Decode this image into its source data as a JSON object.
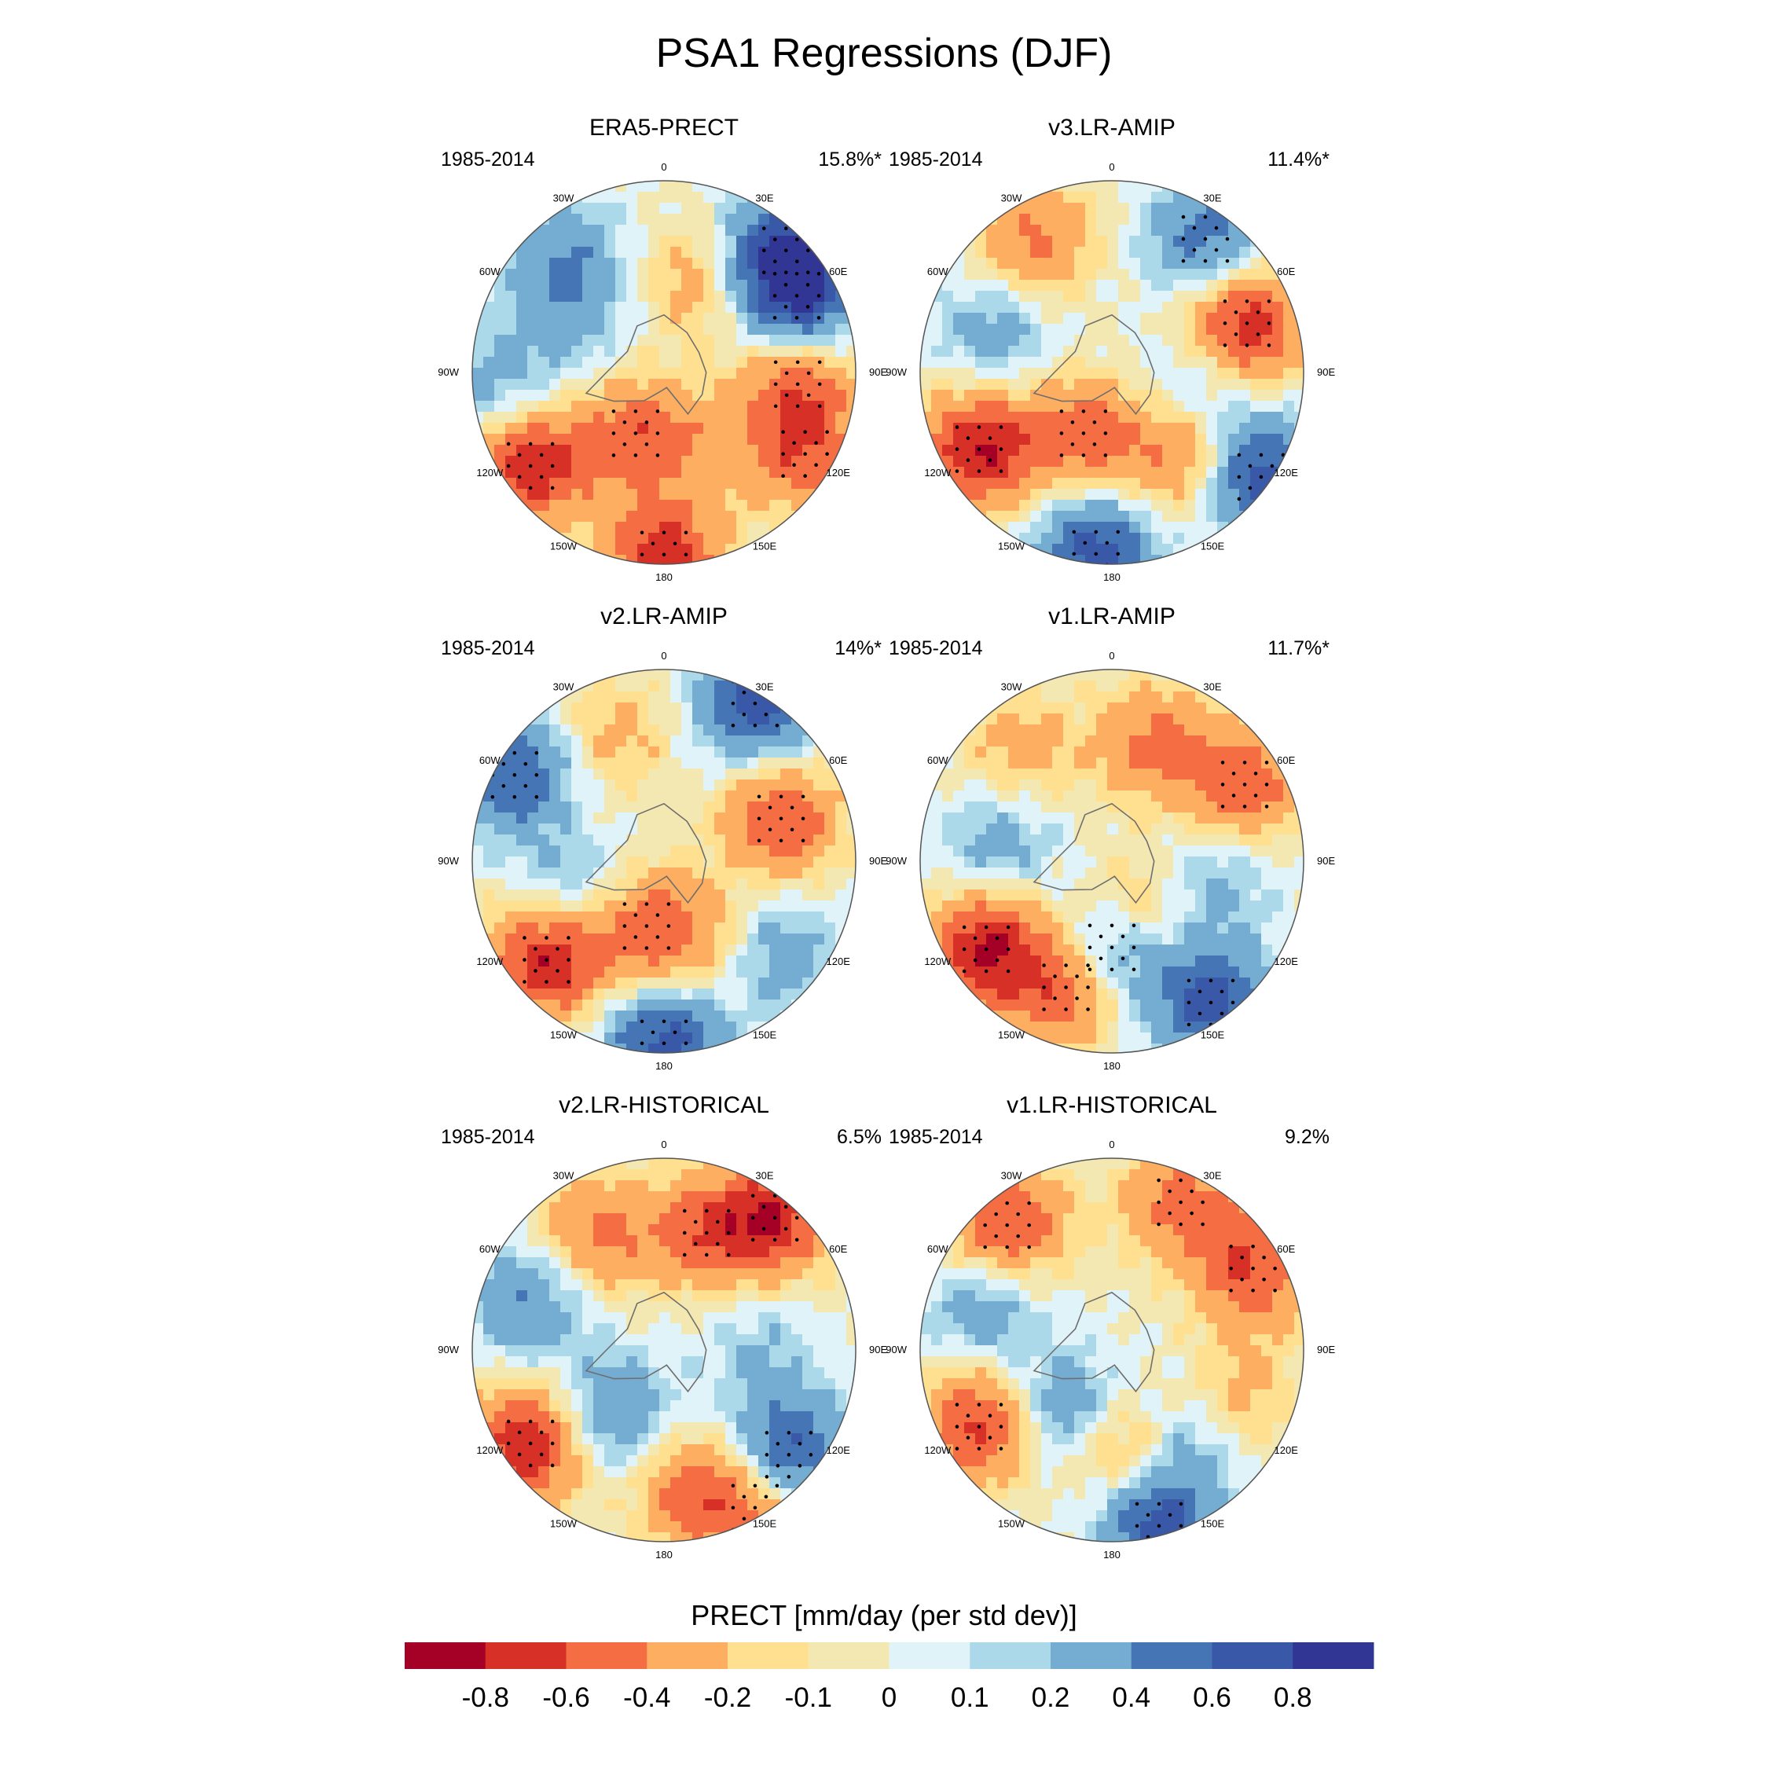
{
  "figure": {
    "title": "PSA1 Regressions (DJF)",
    "colorbar_label": "PRECT [mm/day (per std dev)]"
  },
  "panels": [
    {
      "name": "ERA5-PRECT",
      "years": "1985-2014",
      "percent": "15.8%*",
      "anomalies": [
        [
          235,
          0.85,
          -0.75
        ],
        [
          180,
          0.95,
          -0.7
        ],
        [
          120,
          0.85,
          -0.5
        ],
        [
          45,
          0.9,
          0.7
        ],
        [
          60,
          0.8,
          0.7
        ],
        [
          95,
          0.7,
          -0.5
        ],
        [
          205,
          0.35,
          -0.5
        ],
        [
          300,
          0.55,
          0.25
        ],
        [
          320,
          0.8,
          0.35
        ],
        [
          20,
          0.5,
          -0.3
        ],
        [
          150,
          0.45,
          -0.2
        ],
        [
          265,
          0.9,
          0.3
        ]
      ]
    },
    {
      "name": "v3.LR-AMIP",
      "years": "1985-2014",
      "percent": "11.4%*",
      "anomalies": [
        [
          240,
          0.8,
          -0.8
        ],
        [
          70,
          0.75,
          -0.75
        ],
        [
          185,
          0.95,
          0.7
        ],
        [
          125,
          0.95,
          0.7
        ],
        [
          205,
          0.35,
          -0.5
        ],
        [
          330,
          0.8,
          -0.45
        ],
        [
          140,
          0.55,
          -0.45
        ],
        [
          35,
          0.85,
          0.5
        ],
        [
          290,
          0.65,
          0.3
        ],
        [
          100,
          0.45,
          0.25
        ]
      ]
    },
    {
      "name": "v2.LR-AMIP",
      "years": "1985-2014",
      "percent": "14%*",
      "anomalies": [
        [
          230,
          0.8,
          -0.8
        ],
        [
          180,
          0.95,
          0.7
        ],
        [
          70,
          0.65,
          -0.6
        ],
        [
          30,
          0.95,
          0.7
        ],
        [
          195,
          0.35,
          -0.55
        ],
        [
          300,
          0.9,
          0.6
        ],
        [
          130,
          0.75,
          0.35
        ],
        [
          340,
          0.7,
          -0.25
        ],
        [
          150,
          0.5,
          -0.25
        ],
        [
          250,
          0.5,
          0.3
        ]
      ]
    },
    {
      "name": "v1.LR-AMIP",
      "years": "1985-2014",
      "percent": "11.7%*",
      "anomalies": [
        [
          235,
          0.8,
          -0.8
        ],
        [
          200,
          0.7,
          -0.6
        ],
        [
          180,
          0.45,
          0.6
        ],
        [
          145,
          0.9,
          0.7
        ],
        [
          160,
          0.3,
          -0.4
        ],
        [
          60,
          0.8,
          -0.55
        ],
        [
          20,
          0.65,
          -0.45
        ],
        [
          320,
          0.75,
          -0.3
        ],
        [
          280,
          0.6,
          0.3
        ],
        [
          100,
          0.55,
          0.25
        ]
      ]
    },
    {
      "name": "v2.LR-HISTORICAL",
      "years": "1985-2014",
      "percent": "6.5%",
      "anomalies": [
        [
          235,
          0.85,
          -0.8
        ],
        [
          130,
          0.85,
          0.7
        ],
        [
          40,
          0.9,
          -0.7
        ],
        [
          20,
          0.65,
          -0.5
        ],
        [
          170,
          0.75,
          -0.45
        ],
        [
          330,
          0.7,
          -0.45
        ],
        [
          220,
          0.45,
          0.45
        ],
        [
          150,
          0.95,
          -0.5
        ],
        [
          290,
          0.75,
          0.4
        ],
        [
          90,
          0.5,
          0.2
        ]
      ]
    },
    {
      "name": "v1.LR-HISTORICAL",
      "years": "1985-2014",
      "percent": "9.2%",
      "anomalies": [
        [
          240,
          0.8,
          -0.65
        ],
        [
          320,
          0.85,
          -0.65
        ],
        [
          60,
          0.85,
          -0.6
        ],
        [
          25,
          0.85,
          -0.5
        ],
        [
          165,
          0.95,
          0.7
        ],
        [
          215,
          0.4,
          0.45
        ],
        [
          175,
          0.5,
          -0.45
        ],
        [
          110,
          0.7,
          -0.3
        ],
        [
          290,
          0.7,
          0.35
        ],
        [
          140,
          0.6,
          0.3
        ]
      ]
    }
  ],
  "longitude_labels": [
    "0",
    "30E",
    "60E",
    "90E",
    "120E",
    "150E",
    "180",
    "150W",
    "120W",
    "90W",
    "60W",
    "30W"
  ],
  "colorbar": {
    "ticks": [
      "-0.8",
      "-0.6",
      "-0.4",
      "-0.2",
      "-0.1",
      "0",
      "0.1",
      "0.2",
      "0.4",
      "0.6",
      "0.8"
    ],
    "levels": [
      -0.8,
      -0.6,
      -0.4,
      -0.2,
      -0.1,
      0,
      0.1,
      0.2,
      0.4,
      0.6,
      0.8
    ],
    "colors": [
      "#a50026",
      "#d73027",
      "#f46d43",
      "#fdae61",
      "#fee090",
      "#f4e8b2",
      "#e0f3f8",
      "#abd9e9",
      "#74add1",
      "#4575b4",
      "#3a58a8",
      "#313695"
    ]
  }
}
